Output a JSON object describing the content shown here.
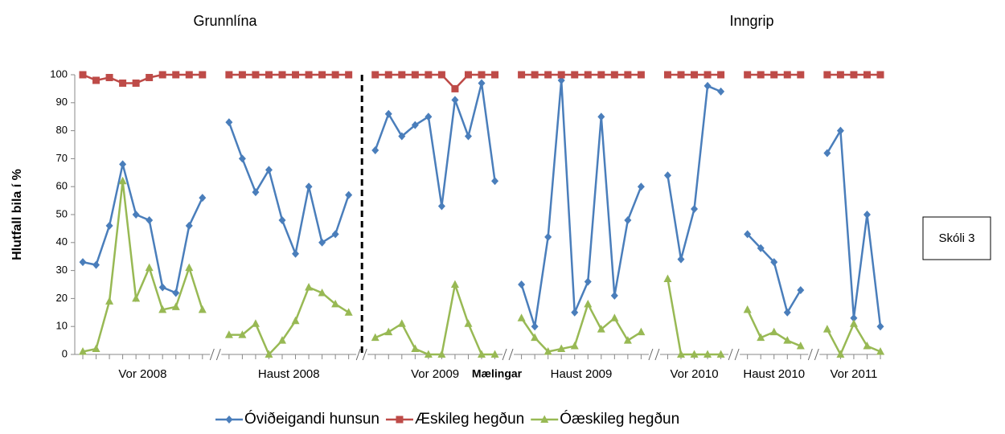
{
  "chart_data": {
    "type": "line",
    "phases": [
      "Grunnlína",
      "Inngrip"
    ],
    "annotation": "Skóli 3",
    "xlabel": "Mælingar",
    "ylabel": "Hlutfall bila í %",
    "group_labels": [
      "Vor 2008",
      "Haust 2008",
      "Vor 2009",
      "Haust 2009",
      "Vor 2010",
      "Haust 2010",
      "Vor 2011"
    ],
    "categories": [
      null,
      null,
      null,
      null,
      null,
      null,
      null,
      null,
      null,
      null,
      null,
      null,
      null,
      null,
      null,
      null,
      null,
      null,
      null,
      null,
      null,
      null,
      null,
      null,
      null,
      null,
      null,
      null,
      null,
      null,
      null,
      null,
      null,
      null,
      null,
      null,
      null,
      null,
      null,
      null,
      null,
      null,
      null,
      null,
      null,
      null,
      null,
      null,
      null,
      null,
      null,
      null,
      null,
      null,
      null,
      null,
      null,
      null,
      null,
      null,
      null
    ],
    "ylim": [
      0,
      100
    ],
    "yticks": [
      0,
      10,
      20,
      30,
      40,
      50,
      60,
      70,
      80,
      90,
      100
    ],
    "legend": "bottom",
    "series": [
      {
        "name": "Óviðeigandi hunsun",
        "color": "#4a7ebb",
        "marker": "diamond",
        "values": [
          33,
          32,
          46,
          68,
          50,
          48,
          24,
          22,
          46,
          56,
          null,
          83,
          70,
          58,
          66,
          48,
          36,
          60,
          40,
          43,
          57,
          null,
          73,
          86,
          78,
          82,
          85,
          53,
          91,
          78,
          97,
          62,
          null,
          25,
          10,
          42,
          98,
          15,
          26,
          85,
          21,
          48,
          60,
          null,
          64,
          34,
          52,
          96,
          94,
          null,
          43,
          38,
          33,
          15,
          23,
          null,
          72,
          80,
          13,
          50,
          10
        ]
      },
      {
        "name": "Æskileg hegðun",
        "color": "#be4b48",
        "marker": "square",
        "values": [
          100,
          98,
          99,
          97,
          97,
          99,
          100,
          100,
          100,
          100,
          null,
          100,
          100,
          100,
          100,
          100,
          100,
          100,
          100,
          100,
          100,
          null,
          100,
          100,
          100,
          100,
          100,
          100,
          95,
          100,
          100,
          100,
          null,
          100,
          100,
          100,
          100,
          100,
          100,
          100,
          100,
          100,
          100,
          null,
          100,
          100,
          100,
          100,
          100,
          null,
          100,
          100,
          100,
          100,
          100,
          null,
          100,
          100,
          100,
          100,
          100
        ]
      },
      {
        "name": "Óæskileg hegðun",
        "color": "#98b954",
        "marker": "triangle",
        "values": [
          1,
          2,
          19,
          62,
          20,
          31,
          16,
          17,
          31,
          16,
          null,
          7,
          7,
          11,
          0,
          5,
          12,
          24,
          22,
          18,
          15,
          null,
          6,
          8,
          11,
          2,
          0,
          0,
          25,
          11,
          0,
          0,
          null,
          13,
          6,
          1,
          2,
          3,
          18,
          9,
          13,
          5,
          8,
          null,
          27,
          0,
          0,
          0,
          0,
          null,
          16,
          6,
          8,
          5,
          3,
          null,
          9,
          0,
          11,
          3,
          1
        ]
      }
    ]
  }
}
